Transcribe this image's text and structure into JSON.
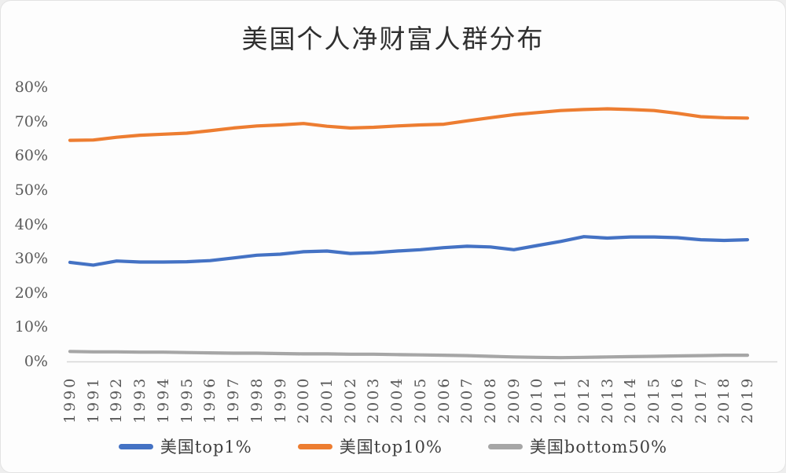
{
  "title": "美国个人净财富人群分布",
  "colors": {
    "top1": "#4472C4",
    "top10": "#ED7D31",
    "bottom50": "#A6A6A6",
    "axis_line": "#D6D6D6",
    "tick_text": "#595959",
    "title_text": "#2F2F2F",
    "legend_text": "#3F3F3F",
    "background": "#FDFDFD"
  },
  "chart_data": {
    "type": "line",
    "title": "美国个人净财富人群分布",
    "xlabel": "",
    "ylabel": "",
    "ylim": [
      0,
      80
    ],
    "grid": false,
    "legend_position": "bottom",
    "x_tick_rotation": -90,
    "yticks": [
      {
        "label": "0%",
        "value": 0
      },
      {
        "label": "10%",
        "value": 10
      },
      {
        "label": "20%",
        "value": 20
      },
      {
        "label": "30%",
        "value": 30
      },
      {
        "label": "40%",
        "value": 40
      },
      {
        "label": "50%",
        "value": 50
      },
      {
        "label": "60%",
        "value": 60
      },
      {
        "label": "70%",
        "value": 70
      },
      {
        "label": "80%",
        "value": 80
      }
    ],
    "categories": [
      1990,
      1991,
      1992,
      1993,
      1994,
      1995,
      1996,
      1997,
      1998,
      1999,
      2000,
      2001,
      2002,
      2003,
      2004,
      2005,
      2006,
      2007,
      2008,
      2009,
      2010,
      2011,
      2012,
      2013,
      2014,
      2015,
      2016,
      2017,
      2018,
      2019
    ],
    "series": [
      {
        "name": "美国top1%",
        "color_key": "top1",
        "values": [
          28.9,
          28.1,
          29.3,
          29.0,
          29.0,
          29.1,
          29.4,
          30.2,
          31.0,
          31.3,
          32.0,
          32.2,
          31.5,
          31.7,
          32.2,
          32.6,
          33.2,
          33.6,
          33.4,
          32.6,
          33.8,
          35.0,
          36.4,
          36.0,
          36.3,
          36.3,
          36.1,
          35.5,
          35.3,
          35.5
        ]
      },
      {
        "name": "美国top10%",
        "color_key": "top10",
        "values": [
          64.5,
          64.6,
          65.4,
          66.0,
          66.3,
          66.6,
          67.3,
          68.1,
          68.7,
          69.0,
          69.4,
          68.6,
          68.1,
          68.3,
          68.7,
          69.0,
          69.2,
          70.2,
          71.1,
          72.0,
          72.6,
          73.2,
          73.5,
          73.7,
          73.5,
          73.2,
          72.4,
          71.4,
          71.1,
          71.0
        ]
      },
      {
        "name": "美国bottom50%",
        "color_key": "bottom50",
        "values": [
          2.9,
          2.8,
          2.8,
          2.7,
          2.7,
          2.6,
          2.5,
          2.4,
          2.4,
          2.3,
          2.2,
          2.2,
          2.1,
          2.1,
          2.0,
          1.9,
          1.8,
          1.7,
          1.5,
          1.3,
          1.2,
          1.1,
          1.2,
          1.3,
          1.4,
          1.5,
          1.6,
          1.7,
          1.8,
          1.8
        ]
      }
    ]
  },
  "legend": {
    "items": [
      {
        "label": "美国top1%",
        "color_key": "top1"
      },
      {
        "label": "美国top10%",
        "color_key": "top10"
      },
      {
        "label": "美国bottom50%",
        "color_key": "bottom50"
      }
    ]
  }
}
